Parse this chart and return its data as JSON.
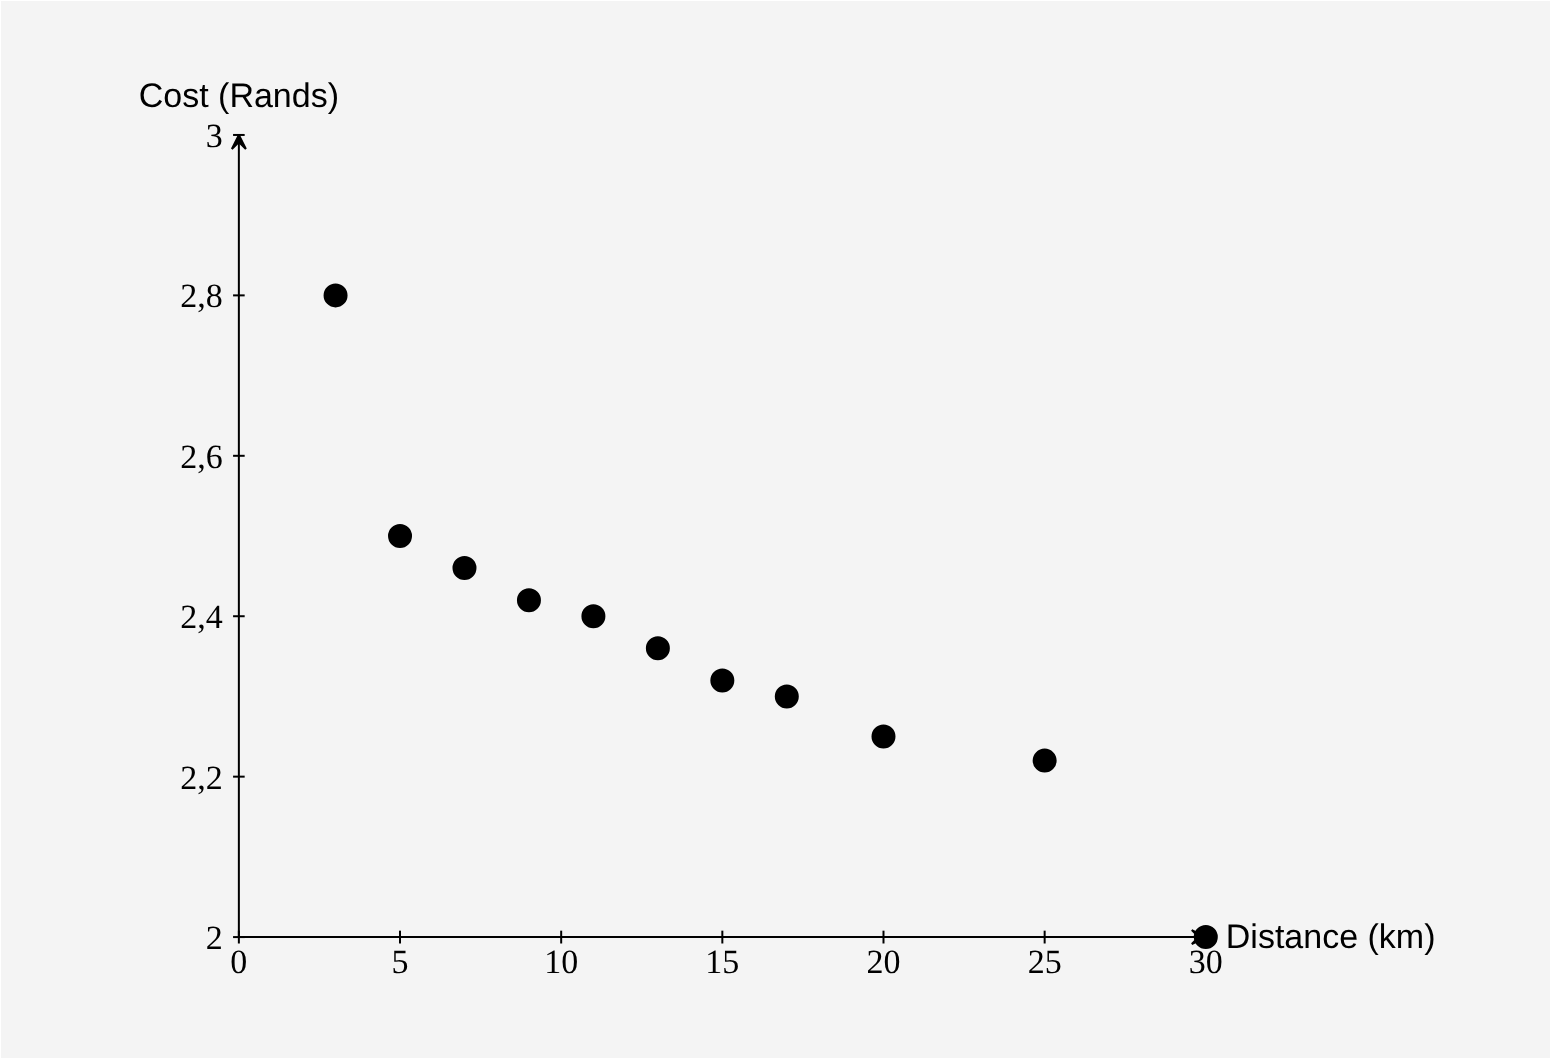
{
  "chart_data": {
    "type": "scatter",
    "xlabel": "Distance (km)",
    "ylabel": "Cost (Rands)",
    "x": [
      3,
      5,
      7,
      9,
      11,
      13,
      15,
      17,
      20,
      25,
      30
    ],
    "series": [
      {
        "color": "#000000",
        "values": [
          2.8,
          2.5,
          2.46,
          2.42,
          2.4,
          2.36,
          2.32,
          2.3,
          2.25,
          2.22,
          2.0
        ]
      }
    ],
    "xlim": [
      0,
      30
    ],
    "ylim": [
      2,
      3
    ],
    "xticks": [
      0,
      5,
      10,
      15,
      20,
      25,
      30
    ],
    "yticks": [
      2,
      {
        "value": 2.2,
        "label": "2,2"
      },
      {
        "value": 2.4,
        "label": "2,4"
      },
      {
        "value": 2.6,
        "label": "2,6"
      },
      {
        "value": 2.8,
        "label": "2,8"
      },
      3
    ],
    "grid": false,
    "marker": "circle"
  }
}
